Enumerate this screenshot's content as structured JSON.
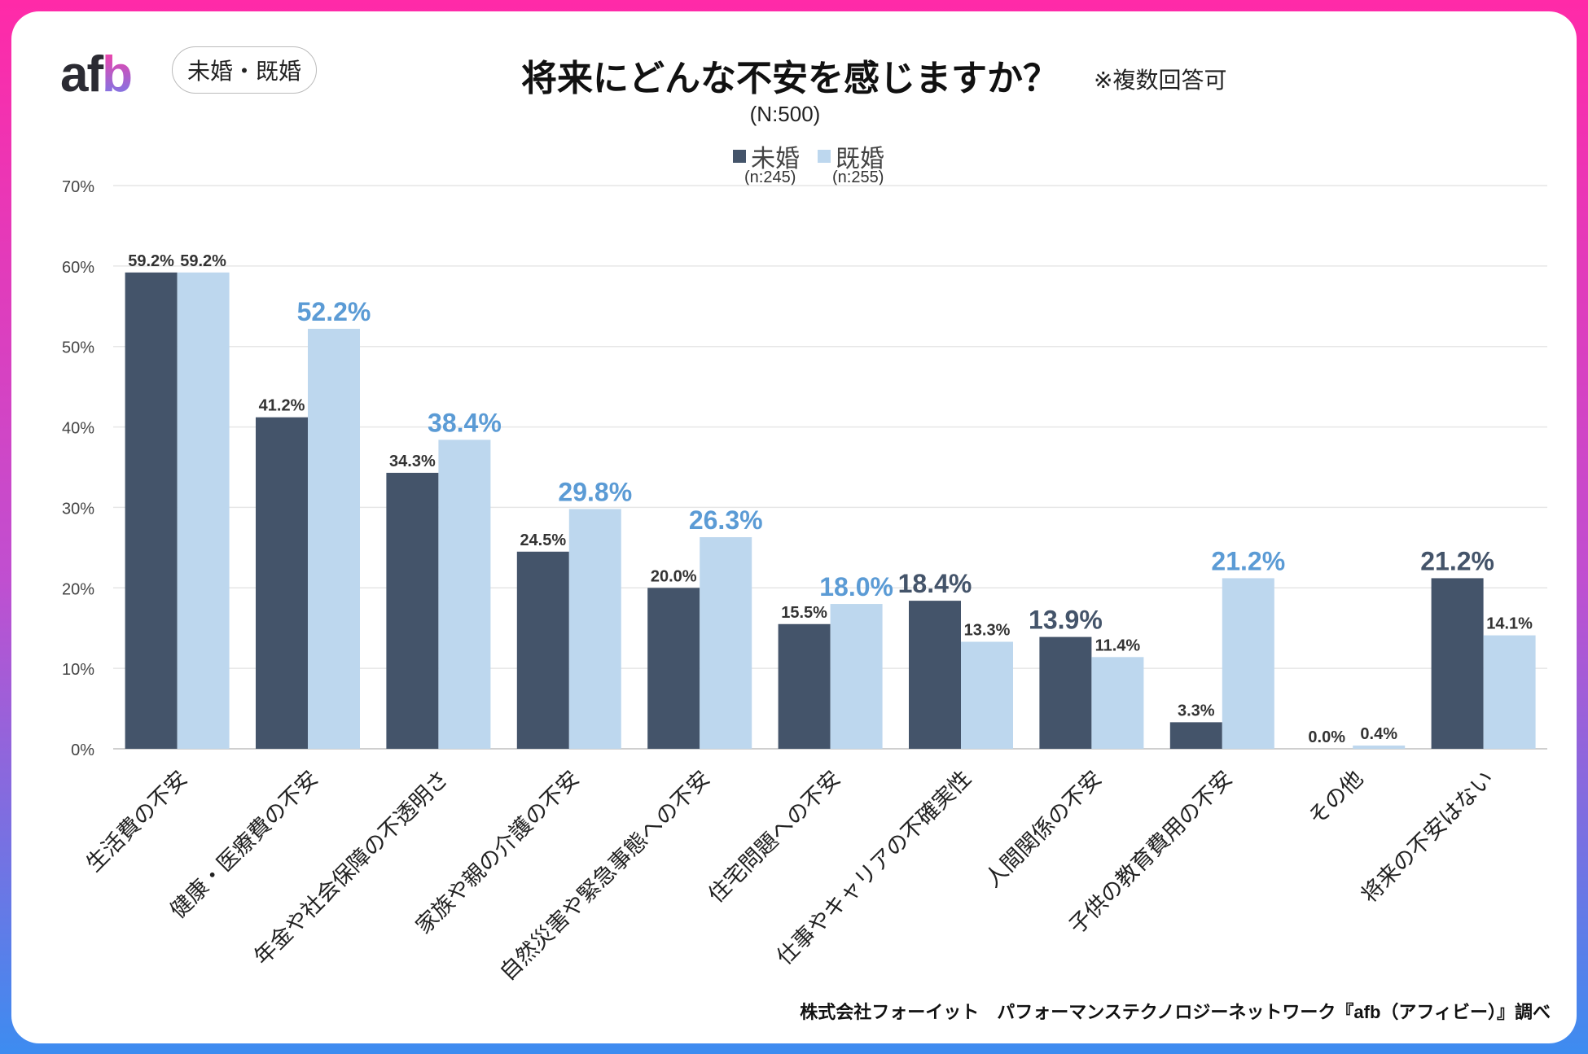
{
  "header": {
    "logo": "afb",
    "segment_pill": "未婚・既婚",
    "title": "将来にどんな不安を感じますか？",
    "note": "※複数回答可",
    "sample": "(N:500)"
  },
  "footer": "株式会社フォーイット　パフォーマンステクノロジーネットワーク『afb（アフィビー）』調べ",
  "colors": {
    "unmarried": "#44546a",
    "married": "#bdd7ee",
    "highlight_married": "#5b9bd5",
    "highlight_unmarried": "#44546a"
  },
  "chart_data": {
    "type": "bar",
    "title": "将来にどんな不安を感じますか？",
    "ylim": [
      0,
      70
    ],
    "yticks": [
      0,
      10,
      20,
      30,
      40,
      50,
      60,
      70
    ],
    "ytick_labels": [
      "0%",
      "10%",
      "20%",
      "30%",
      "40%",
      "50%",
      "60%",
      "70%"
    ],
    "grid": true,
    "legend_position": "top-center",
    "categories": [
      "生活費の不安",
      "健康・医療費の不安",
      "年金や社会保障の不透明さ",
      "家族や親の介護の不安",
      "自然災害や緊急事態への不安",
      "住宅問題への不安",
      "仕事やキャリアの不確実性",
      "人間関係の不安",
      "子供の教育費用の不安",
      "その他",
      "将来の不安はない"
    ],
    "series": [
      {
        "name": "未婚",
        "n_label": "(n:245)",
        "values": [
          59.2,
          41.2,
          34.3,
          24.5,
          20.0,
          15.5,
          18.4,
          13.9,
          3.3,
          0.0,
          21.2
        ],
        "labels": [
          "59.2%",
          "41.2%",
          "34.3%",
          "24.5%",
          "20.0%",
          "15.5%",
          "18.4%",
          "13.9%",
          "3.3%",
          "0.0%",
          "21.2%"
        ],
        "highlight": [
          false,
          false,
          false,
          false,
          false,
          false,
          true,
          true,
          false,
          false,
          true
        ]
      },
      {
        "name": "既婚",
        "n_label": "(n:255)",
        "values": [
          59.2,
          52.2,
          38.4,
          29.8,
          26.3,
          18.0,
          13.3,
          11.4,
          21.2,
          0.4,
          14.1
        ],
        "labels": [
          "59.2%",
          "52.2%",
          "38.4%",
          "29.8%",
          "26.3%",
          "18.0%",
          "13.3%",
          "11.4%",
          "21.2%",
          "0.4%",
          "14.1%"
        ],
        "highlight": [
          false,
          true,
          true,
          true,
          true,
          true,
          false,
          false,
          true,
          false,
          false
        ]
      }
    ]
  }
}
